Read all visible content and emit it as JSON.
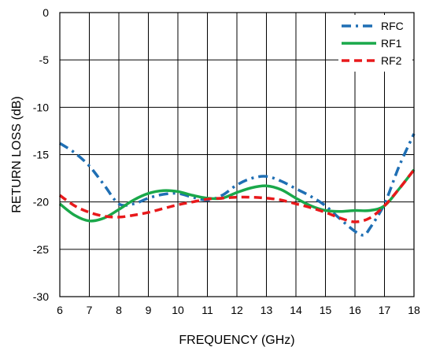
{
  "chart_data": {
    "type": "line",
    "title": "",
    "xlabel": "FREQUENCY (GHz)",
    "ylabel": "RETURN LOSS (dB)",
    "xlim": [
      6,
      18
    ],
    "ylim": [
      -30,
      0
    ],
    "xticks": [
      6,
      7,
      8,
      9,
      10,
      11,
      12,
      13,
      14,
      15,
      16,
      17,
      18
    ],
    "yticks": [
      0,
      -5,
      -10,
      -15,
      -20,
      -25,
      -30
    ],
    "grid": true,
    "legend_position": "top-right",
    "series": [
      {
        "name": "RFC",
        "color": "#1f6fb4",
        "style": "dashdot",
        "x": [
          6,
          6.5,
          7,
          7.5,
          8,
          8.5,
          9,
          9.5,
          10,
          10.5,
          11,
          11.5,
          12,
          12.5,
          13,
          13.5,
          14,
          14.5,
          15,
          15.5,
          16,
          16.3,
          16.5,
          17,
          17.5,
          18
        ],
        "y": [
          -13.8,
          -14.8,
          -16.2,
          -18.2,
          -20.2,
          -20.2,
          -19.6,
          -19.2,
          -19.1,
          -19.5,
          -19.8,
          -19.3,
          -18.2,
          -17.5,
          -17.3,
          -17.8,
          -18.6,
          -19.4,
          -20.4,
          -21.8,
          -23.1,
          -23.5,
          -22.8,
          -20.2,
          -16.2,
          -12.8
        ]
      },
      {
        "name": "RF1",
        "color": "#1aa84a",
        "style": "solid",
        "x": [
          6,
          6.5,
          7,
          7.5,
          8,
          8.5,
          9,
          9.5,
          10,
          10.5,
          11,
          11.5,
          12,
          12.5,
          13,
          13.5,
          14,
          14.5,
          15,
          15.5,
          16,
          16.5,
          17,
          17.5,
          18
        ],
        "y": [
          -20.2,
          -21.4,
          -22.0,
          -21.7,
          -20.8,
          -19.8,
          -19.1,
          -18.8,
          -18.9,
          -19.3,
          -19.6,
          -19.6,
          -19.0,
          -18.5,
          -18.3,
          -18.7,
          -19.6,
          -20.4,
          -20.9,
          -21.0,
          -20.9,
          -20.9,
          -20.4,
          -18.6,
          -16.6
        ]
      },
      {
        "name": "RF2",
        "color": "#e8191b",
        "style": "dashed",
        "x": [
          6,
          6.5,
          7,
          7.5,
          8,
          8.5,
          9,
          9.5,
          10,
          10.5,
          11,
          11.5,
          12,
          12.5,
          13,
          13.5,
          14,
          14.5,
          15,
          15.5,
          16,
          16.5,
          17,
          17.5,
          18
        ],
        "y": [
          -19.3,
          -20.4,
          -21.1,
          -21.5,
          -21.6,
          -21.4,
          -21.1,
          -20.7,
          -20.3,
          -20.0,
          -19.7,
          -19.6,
          -19.5,
          -19.5,
          -19.6,
          -19.8,
          -20.2,
          -20.6,
          -21.1,
          -21.7,
          -22.1,
          -21.7,
          -20.4,
          -18.6,
          -16.6
        ]
      }
    ]
  }
}
